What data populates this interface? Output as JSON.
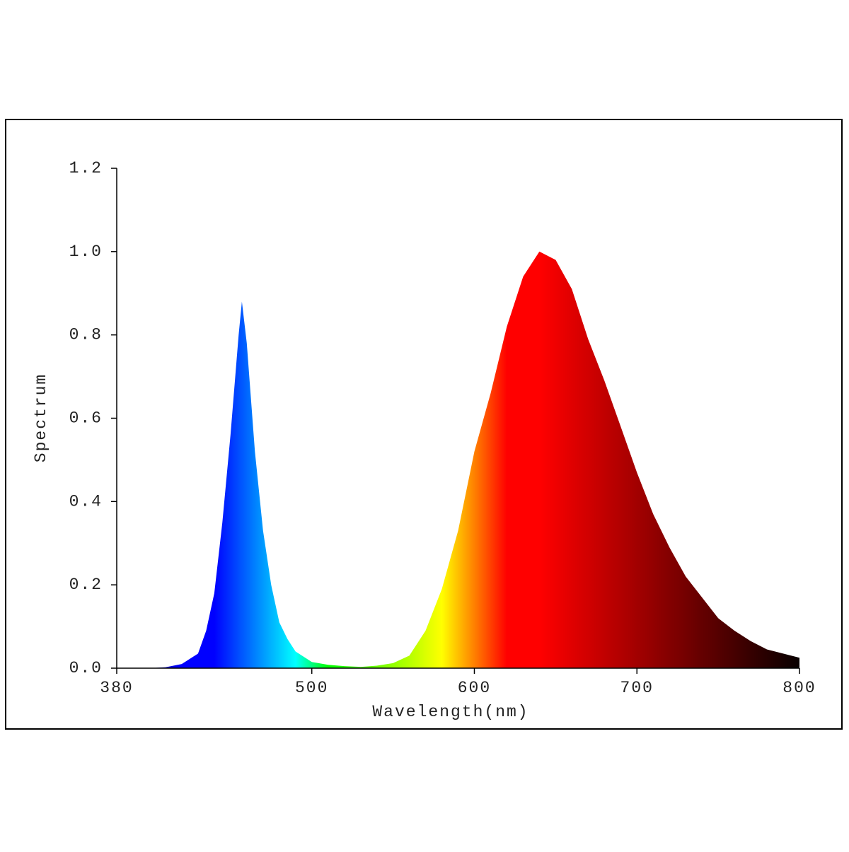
{
  "chart_data": {
    "type": "area",
    "xlabel": "Wavelength(nm)",
    "ylabel": "Spectrum",
    "x": [
      380,
      390,
      400,
      410,
      420,
      430,
      435,
      440,
      445,
      450,
      455,
      457,
      460,
      465,
      470,
      475,
      480,
      485,
      490,
      500,
      510,
      520,
      530,
      540,
      550,
      560,
      570,
      580,
      590,
      600,
      610,
      620,
      630,
      640,
      650,
      660,
      670,
      680,
      690,
      700,
      710,
      720,
      730,
      740,
      750,
      760,
      770,
      780,
      790,
      800
    ],
    "values": [
      0,
      0,
      0,
      0.002,
      0.01,
      0.035,
      0.09,
      0.18,
      0.35,
      0.56,
      0.8,
      0.88,
      0.78,
      0.52,
      0.33,
      0.2,
      0.11,
      0.07,
      0.04,
      0.015,
      0.008,
      0.005,
      0.003,
      0.006,
      0.012,
      0.03,
      0.09,
      0.19,
      0.33,
      0.52,
      0.66,
      0.82,
      0.94,
      1.0,
      0.98,
      0.91,
      0.79,
      0.69,
      0.58,
      0.47,
      0.37,
      0.29,
      0.22,
      0.17,
      0.12,
      0.09,
      0.065,
      0.045,
      0.035,
      0.025
    ],
    "xlim": [
      380,
      800
    ],
    "xticks": [
      380,
      500,
      600,
      700,
      800
    ],
    "ylim": [
      0,
      1.2
    ],
    "yticks": [
      {
        "value": 0,
        "label": "0.0"
      },
      0.2,
      0.4,
      0.6,
      0.8,
      {
        "value": 1,
        "label": "1.0"
      },
      1.2
    ]
  }
}
